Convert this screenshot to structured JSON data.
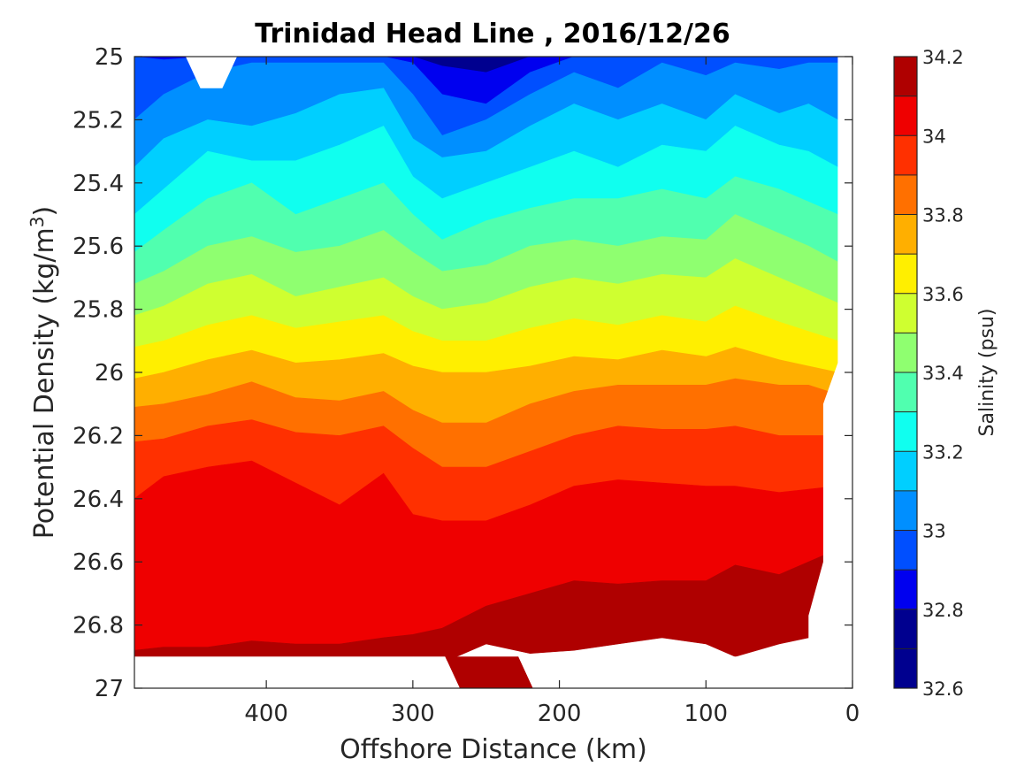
{
  "chart_data": {
    "type": "heatmap",
    "subtype": "filled-contour",
    "title": "Trinidad Head Line , 2016/12/26",
    "xlabel": "Offshore Distance (km)",
    "ylabel": "Potential Density (kg/m",
    "ylabel_superscript": "3",
    "ylabel_suffix": ")",
    "colorbar_label": "Salinity (psu)",
    "x_reversed": true,
    "y_reversed": true,
    "xlim": [
      0,
      490
    ],
    "ylim": [
      25,
      27
    ],
    "xticks": [
      400,
      300,
      200,
      100,
      0
    ],
    "yticks": [
      25,
      25.2,
      25.4,
      25.6,
      25.8,
      26,
      26.2,
      26.4,
      26.6,
      26.8,
      27
    ],
    "clim": [
      32.6,
      34.2
    ],
    "colorbar_ticks": [
      34.2,
      34,
      33.8,
      33.6,
      33.4,
      33.2,
      33,
      32.8,
      32.6
    ],
    "contour_levels": [
      32.6,
      32.7,
      32.8,
      32.9,
      33.0,
      33.1,
      33.2,
      33.3,
      33.4,
      33.5,
      33.6,
      33.7,
      33.8,
      33.9,
      34.0,
      34.1,
      34.2
    ],
    "level_colors": [
      "#00008f",
      "#0000ef",
      "#004fff",
      "#008fff",
      "#00cfff",
      "#10ffef",
      "#50ffaf",
      "#8fff70",
      "#cfff30",
      "#ffef00",
      "#ffaf00",
      "#ff7000",
      "#ff3000",
      "#ef0000",
      "#af0000"
    ],
    "stations_x": [
      490,
      470,
      440,
      410,
      380,
      350,
      320,
      300,
      280,
      250,
      220,
      190,
      160,
      130,
      100,
      80,
      50,
      30,
      10
    ],
    "isolines": [
      {
        "level": 32.8,
        "y": [
          25.0,
          25.0,
          25.0,
          25.0,
          25.0,
          25.0,
          25.0,
          25.0,
          25.03,
          25.05,
          25.0,
          25.0,
          25.0,
          25.0,
          25.0,
          25.0,
          25.0,
          25.0,
          25.0
        ]
      },
      {
        "level": 32.9,
        "y": [
          25.0,
          25.01,
          25.0,
          25.0,
          25.0,
          25.0,
          25.0,
          25.02,
          25.12,
          25.15,
          25.05,
          25.0,
          25.0,
          25.0,
          25.0,
          25.0,
          25.0,
          25.0,
          25.0
        ]
      },
      {
        "level": 33.0,
        "y": [
          25.2,
          25.12,
          25.05,
          25.02,
          25.02,
          25.02,
          25.02,
          25.12,
          25.25,
          25.2,
          25.12,
          25.05,
          25.1,
          25.02,
          25.06,
          25.02,
          25.04,
          25.02,
          25.02
        ]
      },
      {
        "level": 33.1,
        "y": [
          25.35,
          25.26,
          25.2,
          25.22,
          25.18,
          25.12,
          25.1,
          25.26,
          25.32,
          25.3,
          25.22,
          25.15,
          25.2,
          25.15,
          25.2,
          25.12,
          25.18,
          25.15,
          25.2
        ]
      },
      {
        "level": 33.2,
        "y": [
          25.5,
          25.42,
          25.3,
          25.33,
          25.33,
          25.28,
          25.22,
          25.38,
          25.45,
          25.4,
          25.35,
          25.3,
          25.35,
          25.28,
          25.3,
          25.22,
          25.28,
          25.3,
          25.35
        ]
      },
      {
        "level": 33.3,
        "y": [
          25.62,
          25.55,
          25.45,
          25.4,
          25.5,
          25.45,
          25.4,
          25.5,
          25.58,
          25.52,
          25.48,
          25.45,
          25.45,
          25.42,
          25.45,
          25.38,
          25.42,
          25.46,
          25.5
        ]
      },
      {
        "level": 33.4,
        "y": [
          25.72,
          25.68,
          25.6,
          25.57,
          25.62,
          25.6,
          25.55,
          25.62,
          25.68,
          25.66,
          25.6,
          25.58,
          25.6,
          25.57,
          25.58,
          25.5,
          25.56,
          25.6,
          25.65
        ]
      },
      {
        "level": 33.5,
        "y": [
          25.82,
          25.79,
          25.72,
          25.69,
          25.76,
          25.73,
          25.7,
          25.76,
          25.8,
          25.78,
          25.73,
          25.7,
          25.72,
          25.69,
          25.7,
          25.64,
          25.7,
          25.74,
          25.78
        ]
      },
      {
        "level": 33.6,
        "y": [
          25.92,
          25.9,
          25.85,
          25.82,
          25.86,
          25.84,
          25.82,
          25.87,
          25.9,
          25.9,
          25.86,
          25.83,
          25.85,
          25.82,
          25.84,
          25.79,
          25.84,
          25.87,
          25.9
        ]
      },
      {
        "level": 33.7,
        "y": [
          26.02,
          26.0,
          25.96,
          25.93,
          25.97,
          25.96,
          25.94,
          25.98,
          26.0,
          26.0,
          25.98,
          25.95,
          25.96,
          25.93,
          25.95,
          25.92,
          25.96,
          25.98,
          26.0
        ]
      },
      {
        "level": 33.8,
        "y": [
          26.11,
          26.1,
          26.07,
          26.03,
          26.08,
          26.09,
          26.06,
          26.12,
          26.16,
          26.16,
          26.1,
          26.06,
          26.04,
          26.04,
          26.04,
          26.02,
          26.04,
          26.04,
          26.07
        ]
      },
      {
        "level": 33.9,
        "y": [
          26.22,
          26.21,
          26.17,
          26.15,
          26.19,
          26.2,
          26.17,
          26.24,
          26.3,
          26.3,
          26.25,
          26.2,
          26.17,
          26.18,
          26.18,
          26.17,
          26.2,
          26.2,
          26.2
        ]
      },
      {
        "level": 34.0,
        "y": [
          26.4,
          26.33,
          26.3,
          26.28,
          26.35,
          26.42,
          26.32,
          26.45,
          26.47,
          26.47,
          26.42,
          26.36,
          26.34,
          26.35,
          26.36,
          26.36,
          26.38,
          26.37,
          26.36
        ]
      },
      {
        "level": 34.1,
        "y": [
          26.88,
          26.87,
          26.87,
          26.85,
          26.86,
          26.86,
          26.84,
          26.83,
          26.81,
          26.74,
          26.7,
          26.66,
          26.67,
          26.66,
          26.66,
          26.61,
          26.64,
          26.6,
          26.56
        ]
      },
      {
        "level": 34.2,
        "y": [
          26.9,
          26.9,
          26.9,
          26.9,
          26.9,
          26.9,
          26.9,
          26.9,
          26.92,
          26.86,
          26.89,
          26.88,
          26.86,
          26.84,
          26.86,
          26.9,
          26.86,
          26.84,
          26.86
        ]
      }
    ],
    "missing_regions": [
      {
        "name": "top-notch",
        "points": [
          [
            455,
            25.0
          ],
          [
            445,
            25.1
          ],
          [
            430,
            25.1
          ],
          [
            420,
            25.0
          ]
        ]
      },
      {
        "name": "bottom-strip",
        "points": [
          [
            490,
            26.9
          ],
          [
            278,
            26.9
          ],
          [
            268,
            27.0
          ],
          [
            490,
            27.0
          ]
        ]
      },
      {
        "name": "bottom-right-gap",
        "points": [
          [
            228,
            26.9
          ],
          [
            200,
            26.9
          ],
          [
            200,
            27.0
          ],
          [
            218,
            27.0
          ]
        ]
      },
      {
        "name": "bottom-right-strip",
        "points": [
          [
            200,
            26.9
          ],
          [
            30,
            26.9
          ],
          [
            30,
            27.0
          ],
          [
            200,
            27.0
          ]
        ]
      },
      {
        "name": "right-edge",
        "points": [
          [
            10,
            25.0
          ],
          [
            0,
            25.0
          ],
          [
            0,
            27.0
          ],
          [
            30,
            27.0
          ],
          [
            30,
            26.77
          ],
          [
            20,
            26.6
          ],
          [
            20,
            26.1
          ],
          [
            10,
            25.97
          ]
        ]
      }
    ],
    "bottom_patch": {
      "level": 34.2,
      "points": [
        [
          278,
          26.9
        ],
        [
          228,
          26.9
        ],
        [
          218,
          27.0
        ],
        [
          268,
          27.0
        ]
      ]
    }
  }
}
